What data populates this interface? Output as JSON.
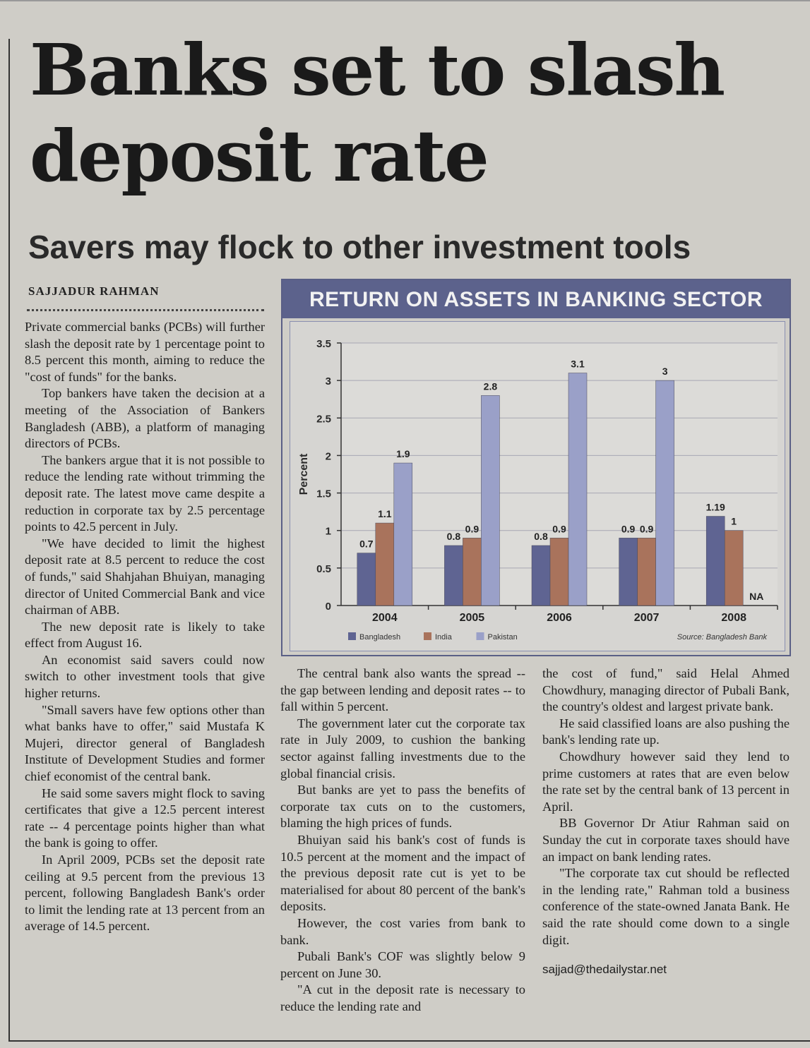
{
  "article": {
    "headline": "Banks set to slash deposit rate",
    "subhead": "Savers may flock to other investment tools",
    "byline": "SAJJADUR RAHMAN",
    "col1": [
      "Private commercial banks (PCBs) will further slash the deposit rate by 1 percentage point to 8.5 percent this month, aiming to reduce the \"cost of funds\" for the banks.",
      "Top bankers have taken the decision at a meeting of the Association of Bankers Bangladesh (ABB), a platform of managing directors of PCBs.",
      "The bankers argue that it is not possible to reduce the lending rate without trimming the deposit rate. The latest move came despite a reduction in corporate tax by 2.5 percentage points to 42.5 percent in July.",
      "\"We have decided to limit the highest deposit rate at 8.5 percent to reduce the cost of funds,\" said Shahjahan Bhuiyan, managing director of United Commercial Bank and vice chairman of ABB.",
      "The new deposit rate is likely to take effect from August 16.",
      "An economist said savers could now switch to other investment tools that give higher returns.",
      "\"Small savers have few options other than what banks have to offer,\" said Mustafa K Mujeri, director general of Bangladesh Institute of Development Studies and former chief economist of the central bank.",
      "He said some savers might flock to saving certificates that give a 12.5 percent interest rate -- 4 percentage points higher than what the bank is going to offer.",
      "In April 2009, PCBs set the deposit rate ceiling at 9.5 percent from the previous 13 percent, following Bangladesh Bank's order to limit the lending rate at 13 percent from an average of 14.5 percent."
    ],
    "col2": [
      "The central bank also wants the spread -- the gap between lending and deposit rates -- to fall within 5 percent.",
      "The government later cut the corporate tax rate in July 2009, to cushion the banking sector against falling investments due to the global financial crisis.",
      "But banks are yet to pass the benefits of corporate tax cuts on to the customers, blaming the high prices of funds.",
      "Bhuiyan said his bank's cost of funds is 10.5 percent at the moment and the impact of the previous deposit rate cut is yet to be materialised for about 80 percent of the bank's deposits.",
      "However, the cost varies from bank to bank.",
      "Pubali Bank's COF was slightly below 9 percent on June 30.",
      "\"A cut in the deposit rate is necessary to reduce the lending rate and"
    ],
    "col3": [
      "the cost of fund,\" said Helal Ahmed Chowdhury, managing director of Pubali Bank, the country's oldest and largest private bank.",
      "He said classified loans are also pushing the bank's lending rate up.",
      "Chowdhury however said they lend to prime customers at rates that are even below the rate set by the central bank of 13 percent in April.",
      "BB Governor Dr Atiur Rahman said on Sunday the cut in corporate taxes should have an impact on bank lending rates.",
      "\"The corporate tax cut should be reflected in the lending rate,\" Rahman told a business conference of the state-owned Janata Bank. He said the rate should come down to a single digit."
    ],
    "email": "sajjad@thedailystar.net"
  },
  "chart_data": {
    "type": "bar",
    "title": "RETURN ON ASSETS IN BANKING SECTOR",
    "ylabel": "Percent",
    "xlabel": "",
    "categories": [
      "2004",
      "2005",
      "2006",
      "2007",
      "2008"
    ],
    "series": [
      {
        "name": "Bangladesh",
        "values": [
          0.7,
          0.8,
          0.8,
          0.9,
          1.19
        ],
        "labels": [
          "0.7",
          "0.8",
          "0.8",
          "0.9",
          "1.19"
        ]
      },
      {
        "name": "India",
        "values": [
          1.1,
          0.9,
          0.9,
          0.9,
          1
        ],
        "labels": [
          "1.1",
          "0.9",
          "0.9",
          "0.9",
          "1"
        ]
      },
      {
        "name": "Pakistan",
        "values": [
          1.9,
          2.8,
          3.1,
          3,
          null
        ],
        "labels": [
          "1.9",
          "2.8",
          "3.1",
          "3",
          "NA"
        ]
      }
    ],
    "yticks": [
      "0",
      "0.5",
      "1",
      "1.5",
      "2",
      "2.5",
      "3",
      "3.5"
    ],
    "ylim": [
      0,
      3.5
    ],
    "grid": true,
    "legend": "bottom-left",
    "source": "Source: Bangladesh Bank",
    "colors": {
      "Bangladesh": "#5f6492",
      "India": "#a9735c",
      "Pakistan": "#9aa0c8"
    }
  }
}
